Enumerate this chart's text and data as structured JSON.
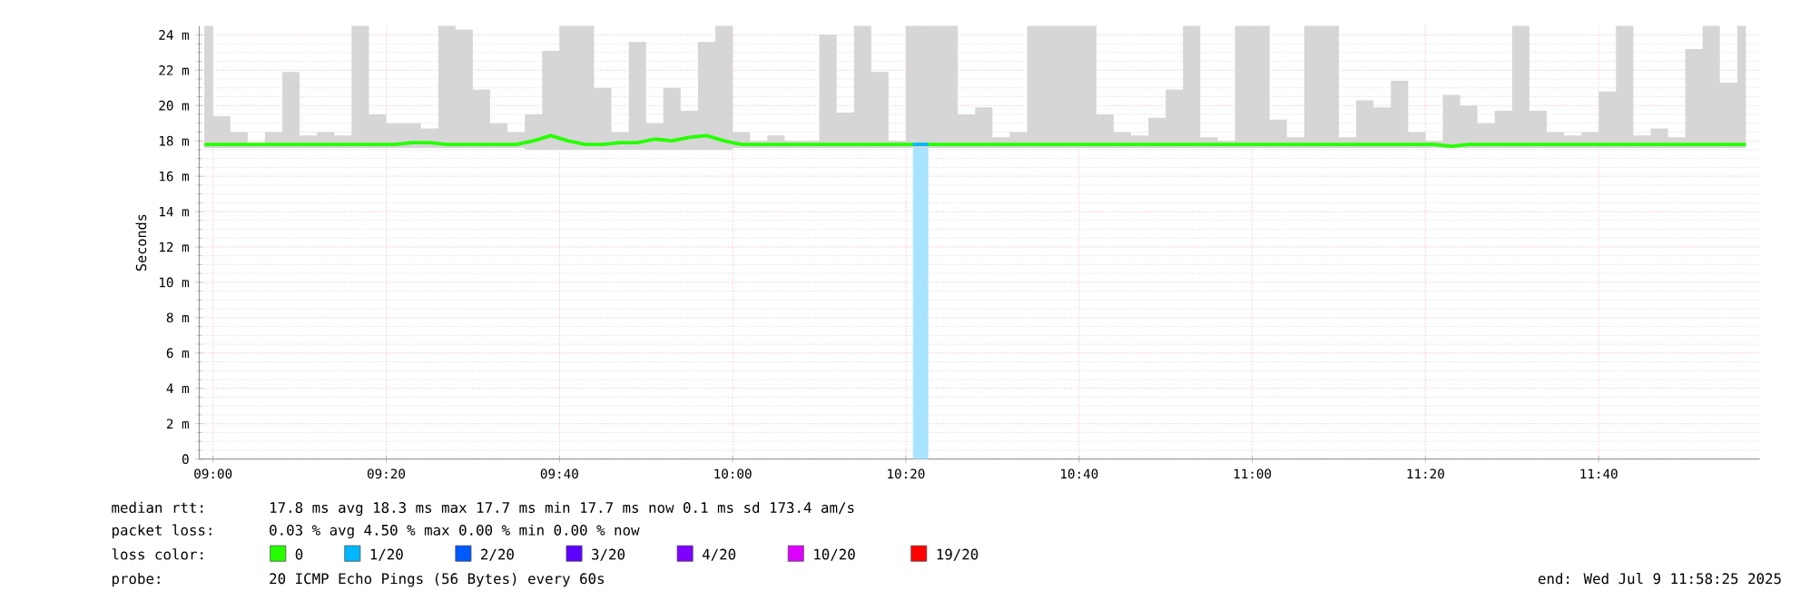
{
  "chart_data": {
    "type": "line",
    "ylabel": "Seconds",
    "x": [
      8.9833,
      9.0167,
      9.05,
      9.0833,
      9.1167,
      9.15,
      9.1833,
      9.2167,
      9.25,
      9.2833,
      9.3167,
      9.35,
      9.3833,
      9.4167,
      9.45,
      9.4833,
      9.5167,
      9.55,
      9.5833,
      9.6167,
      9.65,
      9.6833,
      9.7167,
      9.75,
      9.7833,
      9.8167,
      9.85,
      9.8833,
      9.9167,
      9.95,
      9.9833,
      10.0167,
      10.05,
      10.0833,
      10.1167,
      10.15,
      10.1833,
      10.2167,
      10.25,
      10.2833,
      10.3167,
      10.35,
      10.3833,
      10.4167,
      10.45,
      10.4833,
      10.5167,
      10.55,
      10.5833,
      10.6167,
      10.65,
      10.6833,
      10.7167,
      10.75,
      10.7833,
      10.8167,
      10.85,
      10.8833,
      10.9167,
      10.95,
      10.9833,
      11.0167,
      11.05,
      11.0833,
      11.1167,
      11.15,
      11.1833,
      11.2167,
      11.25,
      11.2833,
      11.3167,
      11.35,
      11.3833,
      11.4167,
      11.45,
      11.4833,
      11.5167,
      11.55,
      11.5833,
      11.6167,
      11.65,
      11.6833,
      11.7167,
      11.75,
      11.7833,
      11.8167,
      11.85,
      11.8833,
      11.9167,
      11.95
    ],
    "series": [
      {
        "name": "0",
        "color": "#26ff00",
        "values": [
          17.8,
          17.8,
          17.8,
          17.8,
          17.8,
          17.8,
          17.8,
          17.8,
          17.8,
          17.8,
          17.8,
          17.8,
          17.9,
          17.9,
          17.8,
          17.8,
          17.8,
          17.8,
          17.8,
          18.0,
          18.3,
          18.0,
          17.8,
          17.8,
          17.9,
          17.9,
          18.1,
          18.0,
          18.2,
          18.3,
          18.0,
          17.8,
          17.8,
          17.8,
          17.8,
          17.8,
          17.8,
          17.8,
          17.8,
          17.8,
          17.8,
          17.8,
          17.8,
          17.8,
          17.8,
          17.8,
          17.8,
          17.8,
          17.8,
          17.8,
          17.8,
          17.8,
          17.8,
          17.8,
          17.8,
          17.8,
          17.8,
          17.8,
          17.8,
          17.8,
          17.8,
          17.8,
          17.8,
          17.8,
          17.8,
          17.8,
          17.8,
          17.8,
          17.8,
          17.8,
          17.8,
          17.8,
          17.7,
          17.8,
          17.8,
          17.8,
          17.8,
          17.8,
          17.8,
          17.8,
          17.8,
          17.8,
          17.8,
          17.8,
          17.8,
          17.8,
          17.8,
          17.8,
          17.8,
          17.8
        ],
        "lower": [
          17.6,
          17.6,
          17.6,
          17.6,
          17.6,
          17.6,
          17.6,
          17.6,
          17.6,
          17.6,
          17.6,
          17.6,
          17.6,
          17.6,
          17.6,
          17.6,
          17.6,
          17.6,
          17.6,
          17.5,
          17.5,
          17.5,
          17.5,
          17.5,
          17.5,
          17.5,
          17.5,
          17.5,
          17.5,
          17.5,
          17.5,
          17.6,
          17.6,
          17.6,
          17.6,
          17.6,
          17.6,
          17.6,
          17.6,
          17.6,
          17.6,
          17.6,
          17.6,
          17.6,
          17.6,
          17.6,
          17.6,
          17.6,
          17.6,
          17.6,
          17.6,
          17.6,
          17.6,
          17.6,
          17.6,
          17.6,
          17.6,
          17.6,
          17.6,
          17.6,
          17.6,
          17.6,
          17.6,
          17.6,
          17.6,
          17.6,
          17.6,
          17.6,
          17.6,
          17.6,
          17.6,
          17.6,
          17.6,
          17.6,
          17.6,
          17.6,
          17.6,
          17.6,
          17.6,
          17.6,
          17.6,
          17.6,
          17.6,
          17.6,
          17.6,
          17.6,
          17.6,
          17.6,
          17.6,
          17.6
        ],
        "upper": [
          24.5,
          19.4,
          18.5,
          17.9,
          18.5,
          21.9,
          18.3,
          18.5,
          18.3,
          24.5,
          19.5,
          19,
          19,
          18.7,
          24.5,
          24.3,
          20.9,
          19,
          18.5,
          19.5,
          23.1,
          24.5,
          24.5,
          21,
          18.5,
          23.6,
          19,
          21,
          19.7,
          23.6,
          24.5,
          18.5,
          18,
          18.3,
          18,
          18,
          24,
          19.6,
          24.5,
          21.9,
          18,
          24.5,
          24.5,
          24.5,
          19.5,
          19.9,
          18.2,
          18.5,
          24.5,
          24.5,
          24.5,
          24.5,
          19.5,
          18.5,
          18.3,
          19.3,
          20.9,
          24.5,
          18.2,
          18,
          24.5,
          24.5,
          19.2,
          18.2,
          24.5,
          24.5,
          18.2,
          20.3,
          19.9,
          21.4,
          18.5,
          18,
          20.6,
          20,
          19,
          19.7,
          24.5,
          19.7,
          18.5,
          18.3,
          18.5,
          20.8,
          24.5,
          18.3,
          18.7,
          18.2,
          23.2,
          24.5,
          21.3,
          24.5
        ]
      },
      {
        "name": "1/20",
        "color": "#00b8ff",
        "x": [
          10.3467,
          10.3767
        ],
        "values": [
          17.8,
          17.8
        ]
      },
      {
        "name": "2/20",
        "color": "#0059ff",
        "values": [
          null,
          null,
          null,
          null,
          null,
          null,
          null,
          null,
          null,
          null,
          null,
          null,
          null,
          null,
          null,
          null,
          null,
          null,
          null,
          null,
          null,
          null,
          null,
          null,
          null,
          null,
          null,
          null,
          null,
          null,
          null,
          null,
          null,
          null,
          null,
          null,
          null,
          null,
          null,
          null,
          null,
          null,
          null,
          null,
          null,
          null,
          null,
          null,
          null,
          null,
          null,
          null,
          null,
          null,
          null,
          null,
          null,
          null,
          null,
          null,
          null,
          null,
          null,
          null,
          null,
          null,
          null,
          null,
          null,
          null,
          null,
          null,
          null,
          null,
          null,
          null,
          null,
          null,
          null,
          null,
          null,
          null,
          null,
          null,
          null,
          null,
          null,
          null,
          null,
          null
        ]
      },
      {
        "name": "3/20",
        "color": "#5e00ff",
        "values": [
          null,
          null,
          null,
          null,
          null,
          null,
          null,
          null,
          null,
          null,
          null,
          null,
          null,
          null,
          null,
          null,
          null,
          null,
          null,
          null,
          null,
          null,
          null,
          null,
          null,
          null,
          null,
          null,
          null,
          null,
          null,
          null,
          null,
          null,
          null,
          null,
          null,
          null,
          null,
          null,
          null,
          null,
          null,
          null,
          null,
          null,
          null,
          null,
          null,
          null,
          null,
          null,
          null,
          null,
          null,
          null,
          null,
          null,
          null,
          null,
          null,
          null,
          null,
          null,
          null,
          null,
          null,
          null,
          null,
          null,
          null,
          null,
          null,
          null,
          null,
          null,
          null,
          null,
          null,
          null,
          null,
          null,
          null,
          null,
          null,
          null,
          null,
          null,
          null,
          null
        ]
      },
      {
        "name": "4/20",
        "color": "#7e00ff",
        "values": [
          null,
          null,
          null,
          null,
          null,
          null,
          null,
          null,
          null,
          null,
          null,
          null,
          null,
          null,
          null,
          null,
          null,
          null,
          null,
          null,
          null,
          null,
          null,
          null,
          null,
          null,
          null,
          null,
          null,
          null,
          null,
          null,
          null,
          null,
          null,
          null,
          null,
          null,
          null,
          null,
          null,
          null,
          null,
          null,
          null,
          null,
          null,
          null,
          null,
          null,
          null,
          null,
          null,
          null,
          null,
          null,
          null,
          null,
          null,
          null,
          null,
          null,
          null,
          null,
          null,
          null,
          null,
          null,
          null,
          null,
          null,
          null,
          null,
          null,
          null,
          null,
          null,
          null,
          null,
          null,
          null,
          null,
          null,
          null,
          null,
          null,
          null,
          null,
          null,
          null
        ]
      },
      {
        "name": "10/20",
        "color": "#dd00ff",
        "values": [
          null,
          null,
          null,
          null,
          null,
          null,
          null,
          null,
          null,
          null,
          null,
          null,
          null,
          null,
          null,
          null,
          null,
          null,
          null,
          null,
          null,
          null,
          null,
          null,
          null,
          null,
          null,
          null,
          null,
          null,
          null,
          null,
          null,
          null,
          null,
          null,
          null,
          null,
          null,
          null,
          null,
          null,
          null,
          null,
          null,
          null,
          null,
          null,
          null,
          null,
          null,
          null,
          null,
          null,
          null,
          null,
          null,
          null,
          null,
          null,
          null,
          null,
          null,
          null,
          null,
          null,
          null,
          null,
          null,
          null,
          null,
          null,
          null,
          null,
          null,
          null,
          null,
          null,
          null,
          null,
          null,
          null,
          null,
          null,
          null,
          null,
          null,
          null,
          null,
          null
        ]
      },
      {
        "name": "19/20",
        "color": "#ff0000",
        "values": [
          null,
          null,
          null,
          null,
          null,
          null,
          null,
          null,
          null,
          null,
          null,
          null,
          null,
          null,
          null,
          null,
          null,
          null,
          null,
          null,
          null,
          null,
          null,
          null,
          null,
          null,
          null,
          null,
          null,
          null,
          null,
          null,
          null,
          null,
          null,
          null,
          null,
          null,
          null,
          null,
          null,
          null,
          null,
          null,
          null,
          null,
          null,
          null,
          null,
          null,
          null,
          null,
          null,
          null,
          null,
          null,
          null,
          null,
          null,
          null,
          null,
          null,
          null,
          null,
          null,
          null,
          null,
          null,
          null,
          null,
          null,
          null,
          null,
          null,
          null,
          null,
          null,
          null,
          null,
          null,
          null,
          null,
          null,
          null,
          null,
          null,
          null,
          null,
          null,
          null
        ]
      }
    ],
    "bands": [
      {
        "axis": "x",
        "from": 10.3467,
        "to": 10.3767,
        "color": "#a8e4ff"
      }
    ],
    "xlim": [
      8.9733,
      11.9767
    ],
    "ylim": [
      0,
      24.5
    ],
    "xticks": [
      {
        "value": 9,
        "label": "09:00"
      },
      {
        "value": 9.3333,
        "label": "09:20"
      },
      {
        "value": 9.6667,
        "label": "09:40"
      },
      {
        "value": 10,
        "label": "10:00"
      },
      {
        "value": 10.3333,
        "label": "10:20"
      },
      {
        "value": 10.6667,
        "label": "10:40"
      },
      {
        "value": 11,
        "label": "11:00"
      },
      {
        "value": 11.3333,
        "label": "11:20"
      },
      {
        "value": 11.6667,
        "label": "11:40"
      }
    ],
    "yticks": [
      0,
      {
        "value": 2,
        "label": "2 m"
      },
      {
        "value": 4,
        "label": "4 m"
      },
      {
        "value": 6,
        "label": "6 m"
      },
      {
        "value": 8,
        "label": "8 m"
      },
      {
        "value": 10,
        "label": "10 m"
      },
      {
        "value": 12,
        "label": "12 m"
      },
      {
        "value": 14,
        "label": "14 m"
      },
      {
        "value": 16,
        "label": "16 m"
      },
      {
        "value": 18,
        "label": "18 m"
      },
      {
        "value": 20,
        "label": "20 m"
      },
      {
        "value": 22,
        "label": "22 m"
      },
      {
        "value": 24,
        "label": "24 m"
      }
    ],
    "grid": true,
    "legend": "bottom",
    "marker": "none",
    "line_style": "solid",
    "annotations": [
      "median rtt:",
      "17.8 ms avg  18.3 ms max  17.7 ms min  17.7 ms now  0.1 ms sd  173.4   am/s",
      "packet loss:",
      "0.03 % avg  4.50 % max  0.00 % min  0.00 % now",
      "loss color:",
      "probe:",
      "20 ICMP Echo Pings (56 Bytes) every 60s",
      "end: Wed Jul  9 11:58:25 2025"
    ]
  }
}
